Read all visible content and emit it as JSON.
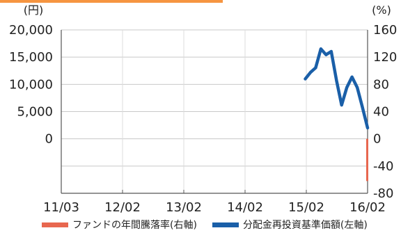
{
  "chart_data": {
    "type": "line",
    "left_axis": {
      "unit": "(円)",
      "ticks": [
        "20,000",
        "15,000",
        "10,000",
        "5,000",
        "0"
      ],
      "ylim": [
        -5000,
        20000
      ]
    },
    "right_axis": {
      "unit": "(%)",
      "ticks": [
        "160",
        "120",
        "80",
        "40",
        "0",
        "-40",
        "-80"
      ],
      "ylim": [
        -80,
        160
      ]
    },
    "x_ticks": [
      "11/03",
      "12/02",
      "13/02",
      "14/02",
      "15/02",
      "16/02"
    ],
    "x_range": [
      0,
      59
    ],
    "series": [
      {
        "name": "分配金再投資基準価額(左軸)",
        "kind": "line",
        "axis": "left",
        "color": "#1a5fa8",
        "x": [
          47,
          48,
          49,
          50,
          51,
          52,
          53,
          54,
          55,
          56,
          57,
          58,
          59
        ],
        "values": [
          12500,
          13500,
          14200,
          17100,
          16200,
          16700,
          12300,
          8500,
          11200,
          12800,
          11200,
          8200,
          5000
        ]
      },
      {
        "name": "ファンドの年間騰落率(右軸)",
        "kind": "bar",
        "axis": "right",
        "color": "#e8674f",
        "x": [
          59
        ],
        "values": [
          -62
        ]
      }
    ],
    "legend": [
      {
        "label": "ファンドの年間騰落率(右軸)",
        "color": "#e8674f"
      },
      {
        "label": "分配金再投資基準価額(左軸)",
        "color": "#1a5fa8"
      }
    ],
    "grid": true,
    "legend_position": "bottom"
  }
}
